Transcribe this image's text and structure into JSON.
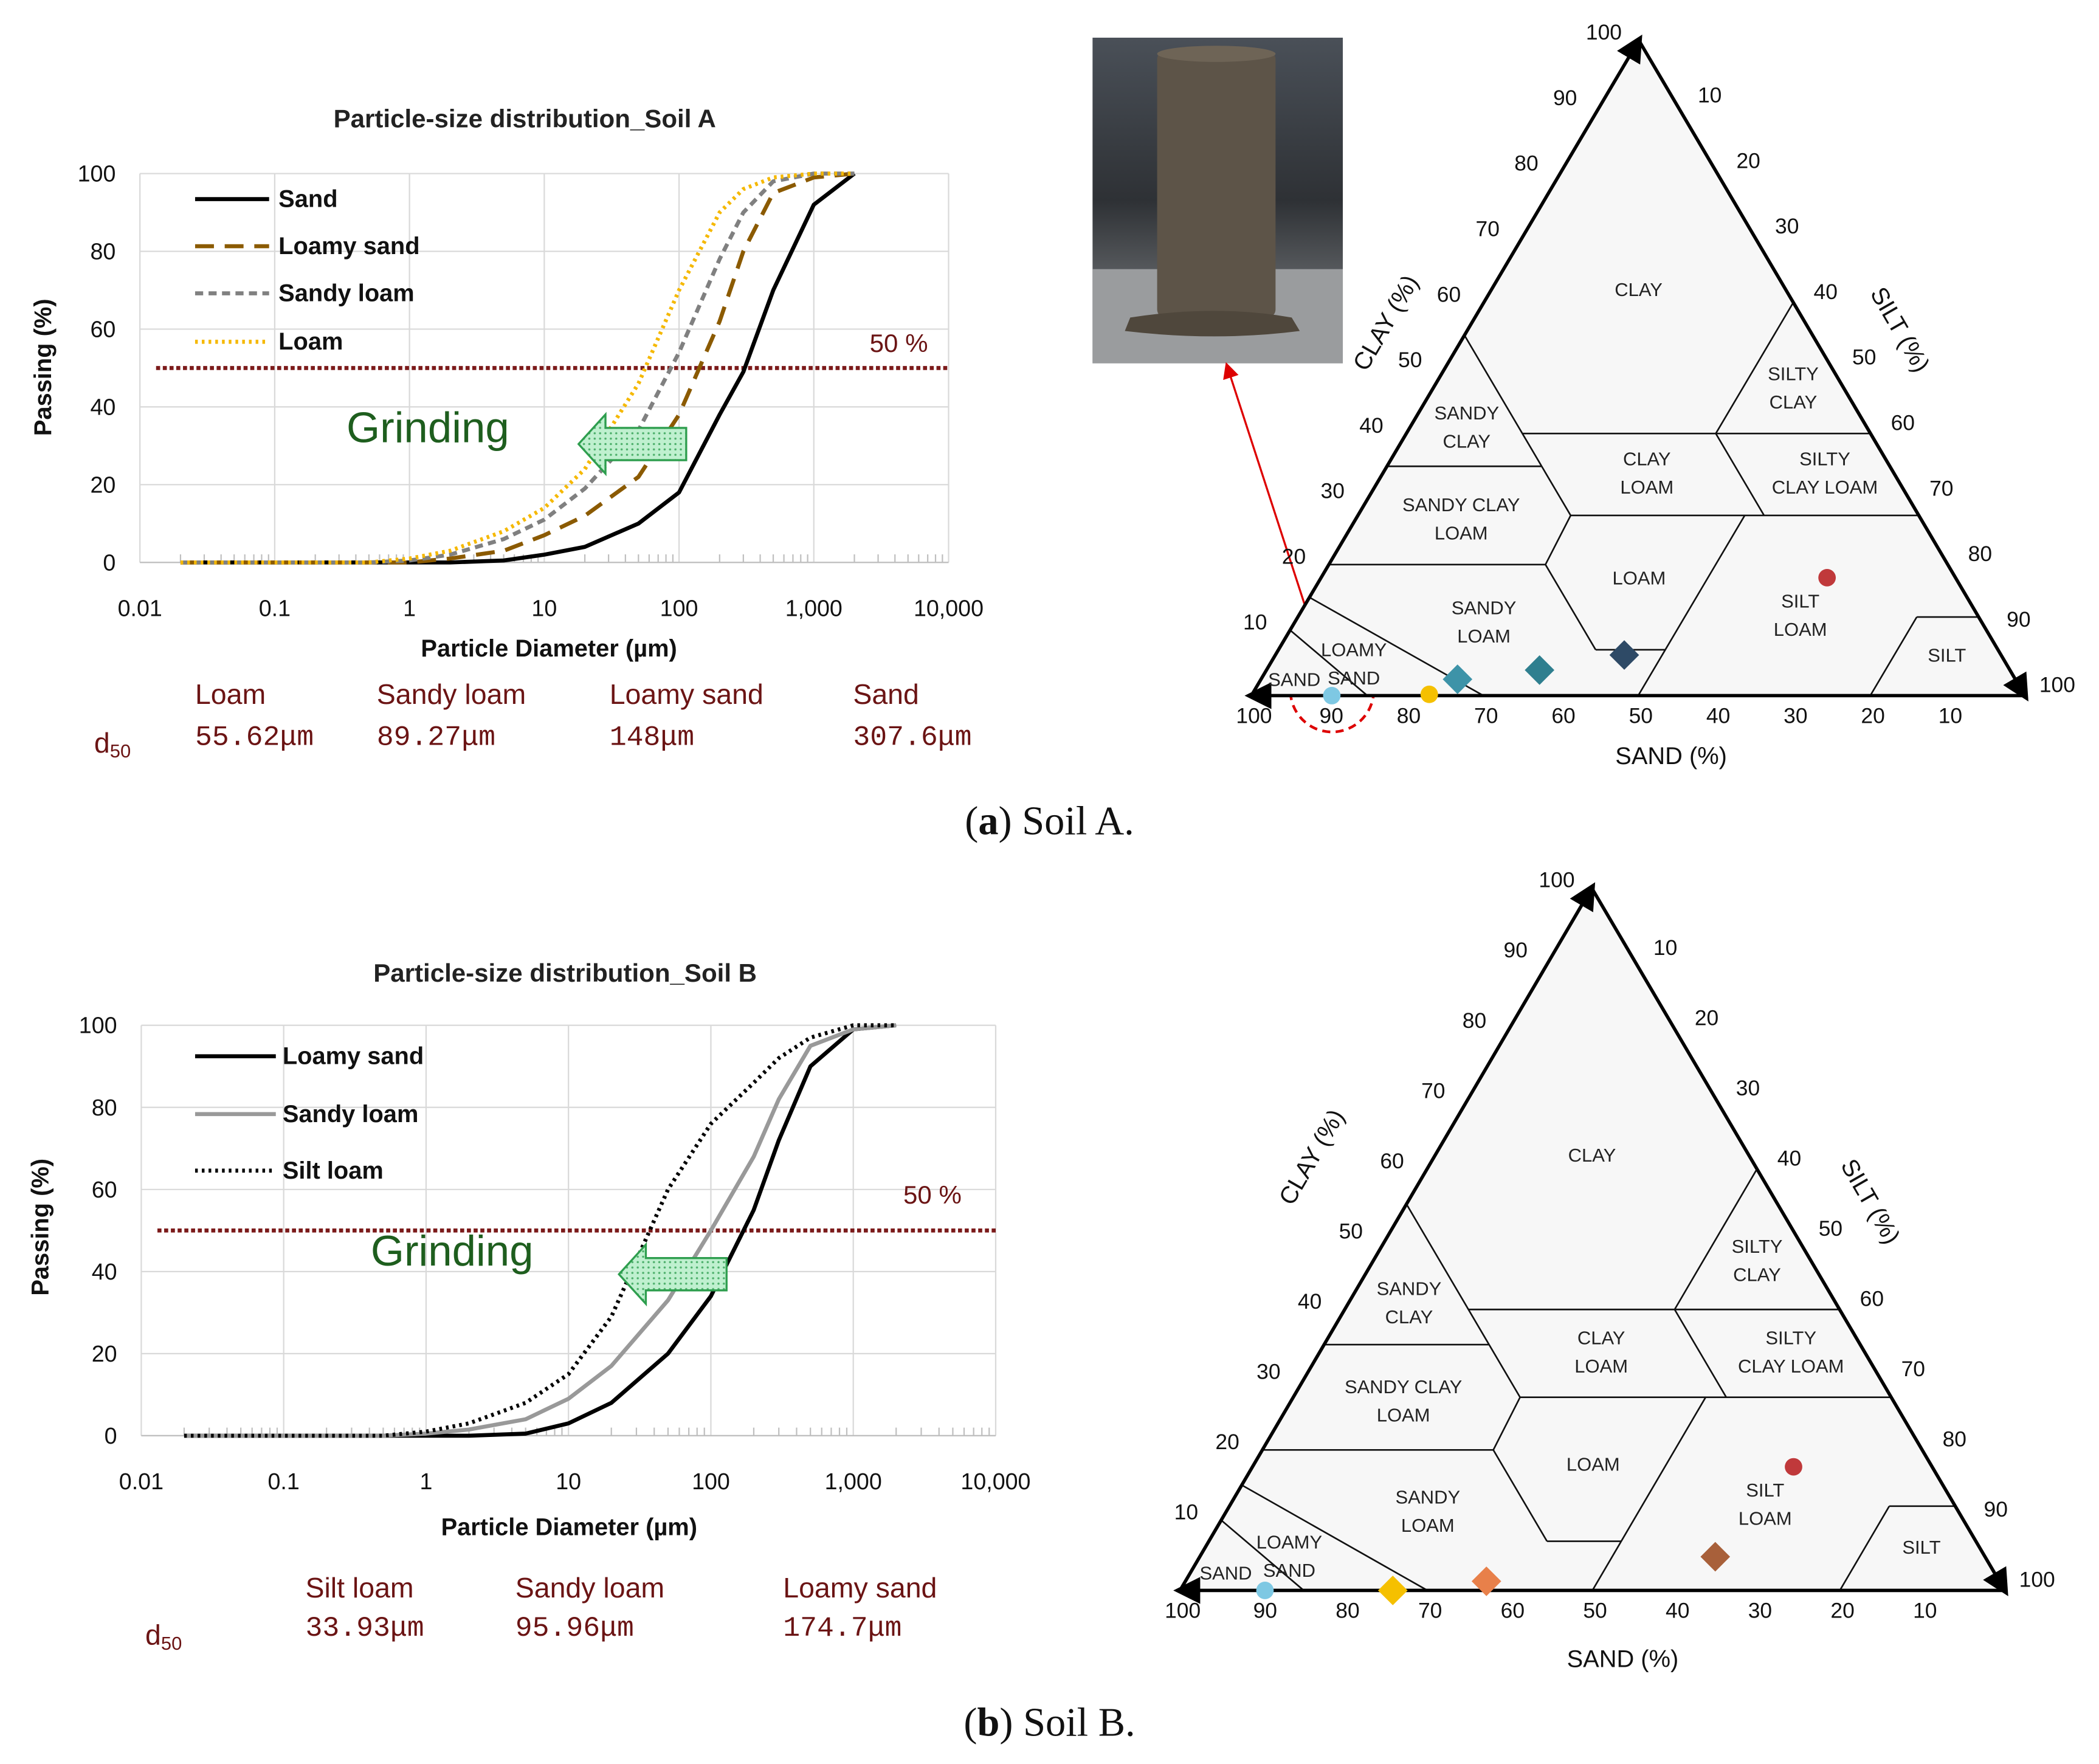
{
  "chart_data": [
    {
      "type": "line",
      "title": "Particle-size distribution_Soil A",
      "x_label": "Particle Diameter (µm)",
      "y_label": "Passing (%)",
      "log_x": true,
      "grid": true,
      "legend": "upper left",
      "xlim": [
        0.01,
        10000
      ],
      "xticks": [
        0.01,
        0.1,
        1,
        10,
        100,
        {
          "value": 1000,
          "label": "1,000"
        },
        {
          "value": 10000,
          "label": "10,000"
        }
      ],
      "ylim": [
        0,
        100
      ],
      "yticks": [
        0,
        20,
        40,
        60,
        80,
        100
      ],
      "x": [
        0.02,
        0.1,
        0.5,
        1,
        2,
        5,
        10,
        20,
        50,
        100,
        200,
        300,
        500,
        1000,
        2000
      ],
      "series": [
        {
          "name": "Sand",
          "color": "#000000",
          "style": "solid",
          "values": [
            0,
            0,
            0,
            0,
            0,
            0.5,
            2,
            4,
            10,
            18,
            38,
            49,
            70,
            92,
            100
          ]
        },
        {
          "name": "Loamy sand",
          "color": "#8b5a00",
          "style": "dashed",
          "values": [
            0,
            0,
            0,
            0,
            1,
            3,
            7,
            12,
            22,
            38,
            62,
            80,
            95,
            99,
            100
          ]
        },
        {
          "name": "Sandy loam",
          "color": "#808080",
          "style": "short-dashed",
          "values": [
            0,
            0,
            0,
            0.5,
            2,
            6,
            11,
            19,
            34,
            54,
            78,
            90,
            98,
            100,
            100
          ]
        },
        {
          "name": "Loam",
          "color": "#f5b800",
          "style": "dotted",
          "values": [
            0,
            0,
            0,
            1,
            3,
            8,
            14,
            24,
            46,
            70,
            90,
            96,
            99,
            100,
            100
          ]
        }
      ],
      "reference_line": {
        "value": 50,
        "label": "50 %",
        "color": "#7b1a1a"
      },
      "annotation": "Grinding",
      "d50_table": {
        "label": "d",
        "subscript": "50",
        "names": [
          "Loam",
          "Sandy loam",
          "Loamy sand",
          "Sand"
        ],
        "values": [
          "55.62μm",
          "89.27μm",
          "148μm",
          "307.6μm"
        ]
      }
    },
    {
      "type": "ternary",
      "axis_labels": {
        "clay": "CLAY (%)",
        "silt": "SILT (%)",
        "sand": "SAND (%)"
      },
      "ticks": [
        10,
        20,
        30,
        40,
        50,
        60,
        70,
        80,
        90,
        100
      ],
      "regions": [
        [
          "CLAY"
        ],
        [
          "SANDY",
          "CLAY"
        ],
        [
          "SILTY",
          "CLAY"
        ],
        [
          "SANDY CLAY",
          "LOAM"
        ],
        [
          "CLAY",
          "LOAM"
        ],
        [
          "SILTY",
          "CLAY LOAM"
        ],
        [
          "LOAM"
        ],
        [
          "SILT",
          "LOAM"
        ],
        [
          "SILT"
        ],
        [
          "SANDY",
          "LOAM"
        ],
        [
          "LOAMY",
          "SAND"
        ],
        [
          "SAND"
        ]
      ],
      "points": [
        {
          "sand": 89.6,
          "clay": 0,
          "color": "#7ec8e3",
          "marker": "circle"
        },
        {
          "sand": 76.9,
          "clay": 0.2,
          "color": "#f5c000",
          "marker": "circle"
        },
        {
          "sand": 72.1,
          "clay": 2.5,
          "color": "#3d93a8",
          "marker": "diamond"
        },
        {
          "sand": 60.8,
          "clay": 3.9,
          "color": "#2f7f8f",
          "marker": "diamond"
        },
        {
          "sand": 48.7,
          "clay": 6.2,
          "color": "#2e4a66",
          "marker": "diamond"
        },
        {
          "sand": 16.6,
          "clay": 18,
          "color": "#c0393b",
          "marker": "circle"
        }
      ]
    },
    {
      "type": "line",
      "title": "Particle-size distribution_Soil B",
      "x_label": "Particle Diameter (µm)",
      "y_label": "Passing (%)",
      "log_x": true,
      "grid": true,
      "legend": "upper left",
      "xlim": [
        0.01,
        10000
      ],
      "xticks": [
        0.01,
        0.1,
        1,
        10,
        100,
        {
          "value": 1000,
          "label": "1,000"
        },
        {
          "value": 10000,
          "label": "10,000"
        }
      ],
      "ylim": [
        0,
        100
      ],
      "yticks": [
        0,
        20,
        40,
        60,
        80,
        100
      ],
      "x": [
        0.02,
        0.1,
        0.5,
        1,
        2,
        5,
        10,
        20,
        50,
        100,
        200,
        300,
        500,
        1000,
        2000
      ],
      "series": [
        {
          "name": "Loamy sand",
          "color": "#000000",
          "style": "solid",
          "values": [
            0,
            0,
            0,
            0,
            0,
            0.5,
            3,
            8,
            20,
            34,
            55,
            72,
            90,
            99,
            100
          ]
        },
        {
          "name": "Sandy loam",
          "color": "#999999",
          "style": "solid",
          "values": [
            0,
            0,
            0,
            0.5,
            1.5,
            4,
            9,
            17,
            33,
            50,
            68,
            82,
            95,
            99,
            100
          ]
        },
        {
          "name": "Silt loam",
          "color": "#000000",
          "style": "dotted",
          "values": [
            0,
            0,
            0,
            1,
            3,
            8,
            15,
            29,
            60,
            76,
            86,
            92,
            97,
            100,
            100
          ]
        }
      ],
      "reference_line": {
        "value": 50,
        "label": "50 %",
        "color": "#7b1a1a"
      },
      "annotation": "Grinding",
      "d50_table": {
        "label": "d",
        "subscript": "50",
        "names": [
          "Silt loam",
          "Sandy loam",
          "Loamy sand"
        ],
        "values": [
          "33.93μm",
          "95.96μm",
          "174.7μm"
        ]
      }
    },
    {
      "type": "ternary",
      "axis_labels": {
        "clay": "CLAY (%)",
        "silt": "SILT (%)",
        "sand": "SAND (%)"
      },
      "ticks": [
        10,
        20,
        30,
        40,
        50,
        60,
        70,
        80,
        90,
        100
      ],
      "regions": [
        [
          "CLAY"
        ],
        [
          "SANDY",
          "CLAY"
        ],
        [
          "SILTY",
          "CLAY"
        ],
        [
          "SANDY CLAY",
          "LOAM"
        ],
        [
          "CLAY",
          "LOAM"
        ],
        [
          "SILTY",
          "CLAY LOAM"
        ],
        [
          "LOAM"
        ],
        [
          "SILT",
          "LOAM"
        ],
        [
          "SILT"
        ],
        [
          "SANDY",
          "LOAM"
        ],
        [
          "LOAMY",
          "SAND"
        ],
        [
          "SAND"
        ]
      ],
      "points": [
        {
          "sand": 89.7,
          "clay": 0,
          "color": "#7ec8e3",
          "marker": "circle"
        },
        {
          "sand": 74.2,
          "clay": 0,
          "color": "#f5c000",
          "marker": "diamond"
        },
        {
          "sand": 62.2,
          "clay": 1.3,
          "color": "#e8804a",
          "marker": "diamond"
        },
        {
          "sand": 32.7,
          "clay": 4.8,
          "color": "#a8603a",
          "marker": "diamond"
        },
        {
          "sand": 16.8,
          "clay": 17.6,
          "color": "#c0393b",
          "marker": "circle"
        }
      ]
    }
  ],
  "captions": [
    {
      "open": "(",
      "letter": "a",
      "rest": ") Soil A."
    },
    {
      "open": "(",
      "letter": "b",
      "rest": ") Soil B."
    }
  ]
}
